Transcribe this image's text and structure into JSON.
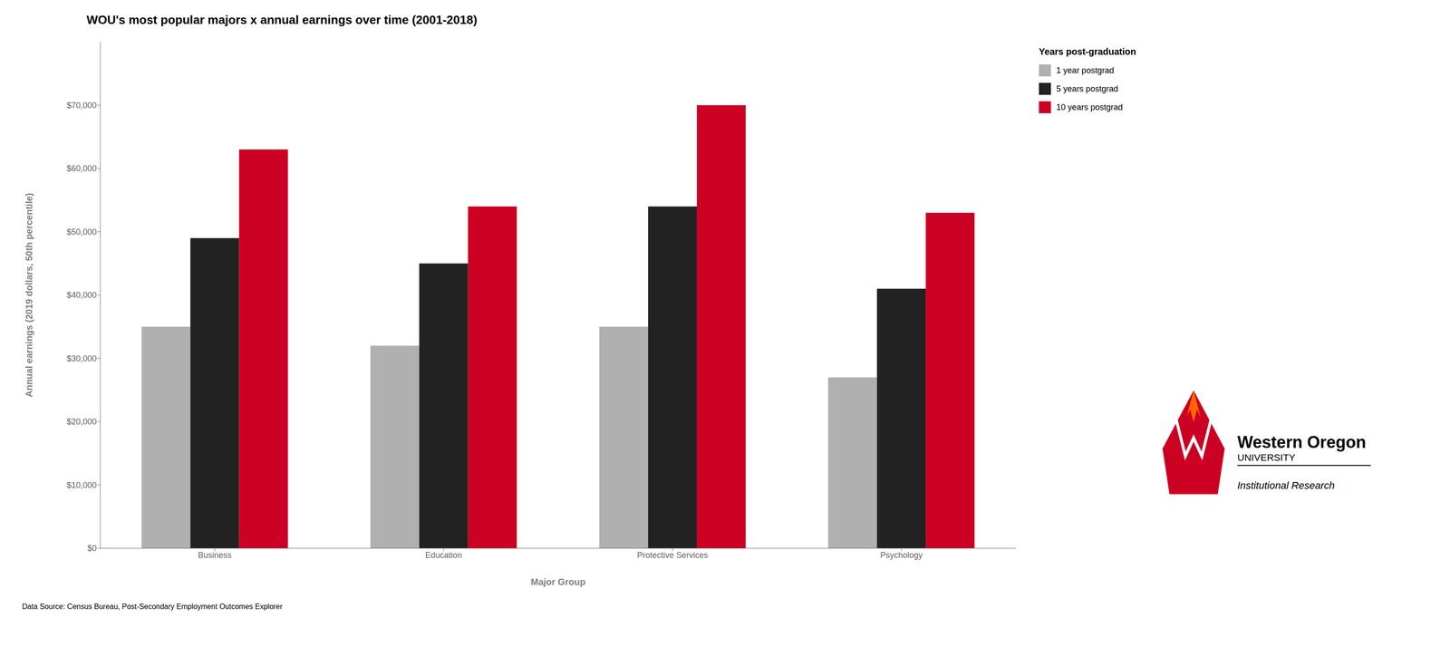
{
  "chart_data": {
    "type": "bar",
    "title": "WOU's most popular majors x annual earnings over time (2001-2018)",
    "xlabel": "Major Group",
    "ylabel": "Annual earnings (2019 dollars, 50th percentile)",
    "categories": [
      "Business",
      "Education",
      "Protective Services",
      "Psychology"
    ],
    "series": [
      {
        "name": "1 year postgrad",
        "color": "#b0b0b0",
        "values": [
          35000,
          32000,
          35000,
          27000
        ]
      },
      {
        "name": "5 years postgrad",
        "color": "#222222",
        "values": [
          49000,
          45000,
          54000,
          41000
        ]
      },
      {
        "name": "10 years postgrad",
        "color": "#cc0022",
        "values": [
          63000,
          54000,
          70000,
          53000
        ]
      }
    ],
    "ylim": [
      0,
      80000
    ],
    "yticks": [
      {
        "value": 0,
        "label": "$0"
      },
      {
        "value": 10000,
        "label": "$10,000"
      },
      {
        "value": 20000,
        "label": "$20,000"
      },
      {
        "value": 30000,
        "label": "$30,000"
      },
      {
        "value": 40000,
        "label": "$40,000"
      },
      {
        "value": 50000,
        "label": "$50,000"
      },
      {
        "value": 60000,
        "label": "$60,000"
      },
      {
        "value": 70000,
        "label": "$70,000"
      }
    ],
    "grid": false,
    "legend": "right",
    "legend_title": "Years post-graduation",
    "annotations": [
      "Data Source: Census Bureau, Post-Secondary Employment Outcomes Explorer",
      "Western Oregon",
      "UNIVERSITY",
      "Institutional Research"
    ]
  }
}
